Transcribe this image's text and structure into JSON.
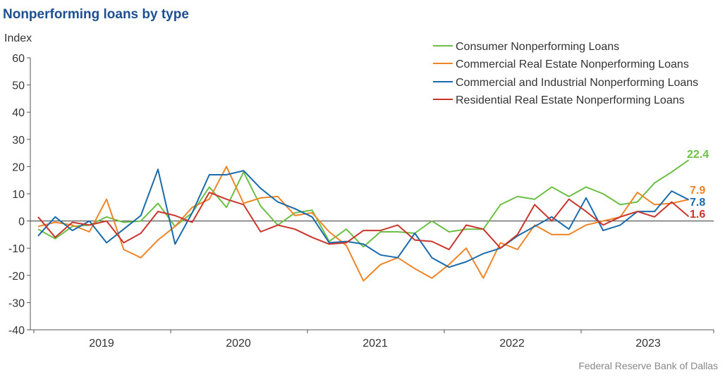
{
  "title": "Nonperforming loans by type",
  "source": "Federal Reserve Bank of Dallas",
  "chart_data": {
    "type": "line",
    "title": "Nonperforming loans by type",
    "ylabel": "Index",
    "xlabel": "",
    "ylim": [
      -40,
      60
    ],
    "yticks": [
      60,
      50,
      40,
      30,
      20,
      10,
      0,
      -10,
      -20,
      -30,
      -40
    ],
    "xlabels": [
      "2019",
      "2020",
      "2021",
      "2022",
      "2023"
    ],
    "x_years_start": 2018.6667,
    "points_per_year": 12,
    "legend_position": "top-right",
    "series": [
      {
        "name": "Consumer Nonperforming Loans",
        "color": "#6bbf45",
        "end_label": "22.4",
        "values": [
          -3,
          -6.5,
          -2,
          -1.5,
          1.5,
          -0.5,
          0,
          6.5,
          -2,
          3,
          12.5,
          5,
          18,
          5.5,
          -1.5,
          3,
          4,
          -7.5,
          -3,
          -9.5,
          -4,
          -4,
          -4.5,
          0,
          -4,
          -3,
          -3,
          6,
          9,
          8,
          12.5,
          9,
          12.5,
          10,
          6,
          7,
          14,
          18,
          22.4
        ]
      },
      {
        "name": "Commercial Real Estate Nonperforming Loans",
        "color": "#f08428",
        "end_label": "7.9",
        "values": [
          -2,
          -0.5,
          -1.5,
          -4,
          8,
          -10.5,
          -13.5,
          -7,
          -2,
          5,
          8,
          20,
          6.5,
          8.5,
          9,
          2,
          3,
          -4,
          -9,
          -22,
          -16,
          -13.5,
          -17.5,
          -21,
          -16,
          -10,
          -21,
          -8,
          -10.5,
          -1.5,
          -5,
          -5,
          -1.5,
          0,
          1.5,
          10.5,
          6,
          6.5,
          7.9
        ]
      },
      {
        "name": "Commercial and Industrial Nonperforming Loans",
        "color": "#1a6aac",
        "end_label": "7.8",
        "values": [
          -5.5,
          1.5,
          -3.5,
          0,
          -8,
          -3,
          2,
          19,
          -8.5,
          3,
          17,
          17,
          18.5,
          12,
          7,
          4.5,
          1.5,
          -8,
          -7.5,
          -8.5,
          -12.5,
          -13.5,
          -4.5,
          -13.5,
          -17,
          -15,
          -12,
          -10,
          -5.5,
          -2,
          1.5,
          -3,
          8.5,
          -3.5,
          -1.5,
          3.5,
          3.5,
          11,
          7.8
        ]
      },
      {
        "name": "Residential Real Estate Nonperforming Loans",
        "color": "#c8362c",
        "end_label": "1.6",
        "values": [
          1.5,
          -6,
          -0.5,
          -1.5,
          0,
          -8,
          -4.5,
          3.5,
          2,
          -0.5,
          10.5,
          8,
          6,
          -4,
          -1.5,
          -3,
          -6,
          -8.5,
          -8,
          -3.5,
          -3.5,
          -1.5,
          -7,
          -7.5,
          -10.5,
          -1.5,
          -3,
          -10,
          -5,
          6,
          0,
          8,
          3.5,
          -1.5,
          1.5,
          3.5,
          1.5,
          7,
          1.6
        ]
      }
    ]
  }
}
